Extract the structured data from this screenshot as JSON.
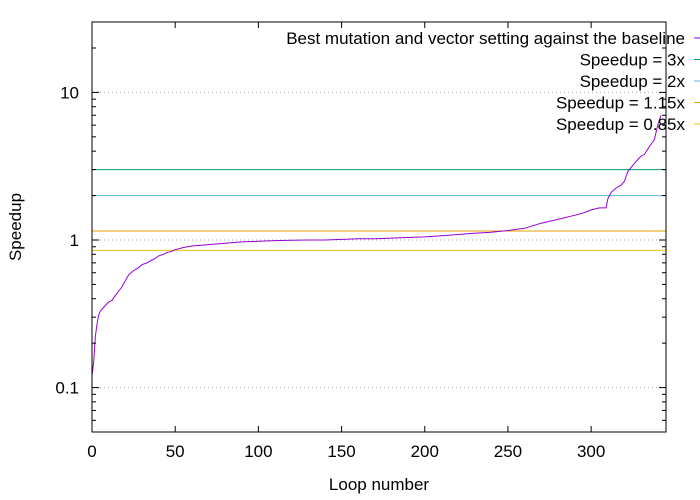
{
  "chart_data": {
    "type": "line",
    "title": "",
    "xlabel": "Loop number",
    "ylabel": "Speedup",
    "xlim": [
      0,
      345
    ],
    "ylim": [
      0.05,
      30
    ],
    "yscale": "log",
    "grid": {
      "horizontal_at": [
        0.1,
        1,
        10
      ],
      "style": "dotted"
    },
    "xticks": [
      0,
      50,
      100,
      150,
      200,
      250,
      300
    ],
    "yticks": [
      0.1,
      1,
      10
    ],
    "legend_position": "top-right",
    "series": [
      {
        "name": "Best mutation and vector setting against the baseline",
        "color": "#9400d3",
        "x": [
          0,
          1,
          2,
          3,
          4,
          5,
          6,
          8,
          10,
          12,
          14,
          16,
          18,
          20,
          22,
          25,
          28,
          30,
          33,
          35,
          38,
          40,
          43,
          45,
          48,
          50,
          55,
          60,
          70,
          80,
          90,
          100,
          110,
          120,
          130,
          140,
          150,
          160,
          170,
          180,
          190,
          200,
          210,
          220,
          230,
          240,
          250,
          260,
          265,
          270,
          280,
          290,
          295,
          300,
          305,
          309,
          310,
          312,
          315,
          318,
          320,
          322,
          325,
          328,
          330,
          332,
          335,
          338,
          340,
          342
        ],
        "y": [
          0.12,
          0.15,
          0.22,
          0.27,
          0.31,
          0.33,
          0.34,
          0.36,
          0.38,
          0.39,
          0.42,
          0.45,
          0.48,
          0.53,
          0.58,
          0.62,
          0.65,
          0.68,
          0.7,
          0.72,
          0.75,
          0.78,
          0.8,
          0.82,
          0.84,
          0.86,
          0.89,
          0.91,
          0.93,
          0.95,
          0.97,
          0.98,
          0.99,
          0.995,
          1.0,
          1.0,
          1.01,
          1.02,
          1.02,
          1.03,
          1.04,
          1.05,
          1.07,
          1.09,
          1.11,
          1.13,
          1.16,
          1.2,
          1.25,
          1.3,
          1.38,
          1.47,
          1.52,
          1.6,
          1.65,
          1.65,
          1.9,
          2.1,
          2.25,
          2.35,
          2.5,
          2.9,
          3.2,
          3.5,
          3.7,
          3.8,
          4.3,
          4.8,
          6.0,
          7.0
        ]
      },
      {
        "name": "Speedup = 3x",
        "color": "#009e73",
        "constant": 3
      },
      {
        "name": "Speedup = 2x",
        "color": "#56b4e9",
        "constant": 2
      },
      {
        "name": "Speedup = 1.15x",
        "color": "#e69f00",
        "constant": 1.15
      },
      {
        "name": "Speedup = 0.85x",
        "color": "#f0c000",
        "constant": 0.85
      }
    ]
  }
}
